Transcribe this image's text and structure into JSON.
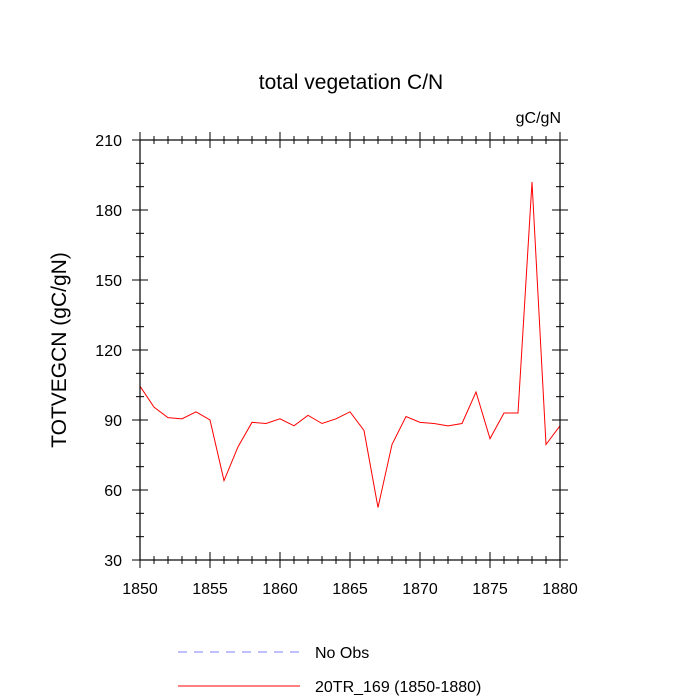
{
  "chart_data": {
    "type": "line",
    "title": "total vegetation C/N",
    "units_label": "gC/gN",
    "ylabel": "TOTVEGCN  (gC/gN)",
    "xlabel": "",
    "xlim": [
      1850,
      1880
    ],
    "ylim": [
      30,
      210
    ],
    "x_ticks": [
      1850,
      1855,
      1860,
      1865,
      1870,
      1875,
      1880
    ],
    "y_ticks": [
      30,
      60,
      90,
      120,
      150,
      180,
      210
    ],
    "x_tick_labels": [
      "1850",
      "1855",
      "1860",
      "1865",
      "1870",
      "1875",
      "1880"
    ],
    "y_tick_labels": [
      "30",
      "60",
      "90",
      "120",
      "150",
      "180",
      "210"
    ],
    "grid": false,
    "legend_position": "bottom",
    "series": [
      {
        "name": "No Obs",
        "color": "#8080ff",
        "style": "dashed",
        "x": [],
        "values": []
      },
      {
        "name": "20TR_169 (1850-1880)",
        "color": "#ff0000",
        "style": "solid",
        "x": [
          1850,
          1851,
          1852,
          1853,
          1854,
          1855,
          1856,
          1857,
          1858,
          1859,
          1860,
          1861,
          1862,
          1863,
          1864,
          1865,
          1866,
          1867,
          1868,
          1869,
          1870,
          1871,
          1872,
          1873,
          1874,
          1875,
          1876,
          1877,
          1878,
          1879,
          1880
        ],
        "values": [
          104.5,
          95.5,
          91,
          90.5,
          93.5,
          90,
          64,
          78.5,
          89,
          88.5,
          90.5,
          87.5,
          92,
          88.5,
          90.5,
          93.5,
          85.5,
          52.5,
          79.5,
          91.5,
          89,
          88.5,
          87.5,
          88.5,
          102,
          82,
          93,
          93,
          192,
          79.5,
          87.5
        ]
      }
    ]
  }
}
